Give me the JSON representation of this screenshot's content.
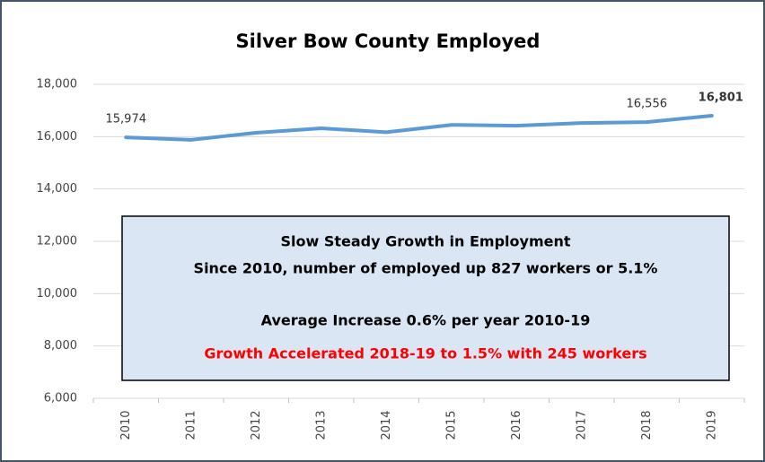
{
  "chart_data": {
    "type": "line",
    "title": "Silver Bow County Employed",
    "categories": [
      "2010",
      "2011",
      "2012",
      "2013",
      "2014",
      "2015",
      "2016",
      "2017",
      "2018",
      "2019"
    ],
    "series": [
      {
        "color": "#5b9bd5",
        "values": [
          15974,
          15880,
          16150,
          16320,
          16170,
          16450,
          16420,
          16520,
          16556,
          16801
        ],
        "value_labels": [
          "15,974",
          null,
          null,
          null,
          null,
          null,
          null,
          null,
          "16,556",
          "16,801"
        ]
      }
    ],
    "ylim": [
      6000,
      18000
    ],
    "yticks": [
      {
        "value": 6000,
        "label": "6,000"
      },
      {
        "value": 8000,
        "label": "8,000"
      },
      {
        "value": 10000,
        "label": "10,000"
      },
      {
        "value": 12000,
        "label": "12,000"
      },
      {
        "value": 14000,
        "label": "14,000"
      },
      {
        "value": 16000,
        "label": "16,000"
      },
      {
        "value": 18000,
        "label": "18,000"
      }
    ],
    "grid": true,
    "annotation": [
      {
        "text": "Slow Steady Growth in Employment",
        "color": "#000000"
      },
      {
        "text": "Since 2010,  number of employed up 827 workers or 5.1%",
        "color": "#000000"
      },
      {
        "text": "Average Increase 0.6% per year 2010-19",
        "color": "#000000"
      },
      {
        "text": "Growth Accelerated 2018-19 to 1.5% with 245 workers",
        "color": "#ff0000"
      }
    ]
  }
}
